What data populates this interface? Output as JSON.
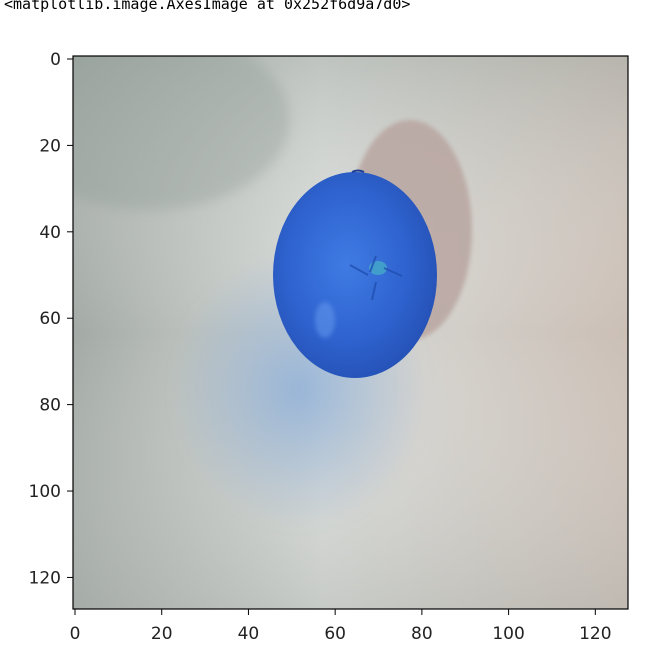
{
  "output_text": "<matplotlib.image.AxesImage at 0x252f6d9a7d0>",
  "image": {
    "width": 128,
    "height": 128,
    "subject": "blue-tinted tangerine photo (BGR channel order) on white surface",
    "colors": {
      "background_left": "#9fa8a3",
      "background_center": "#d9dcd8",
      "background_right": "#c9bdb3",
      "fruit_dark": "#2d5cc4",
      "fruit_light": "#3d78e0",
      "shadow": "#b8a7a0",
      "blue_shadow": "#7fa8d9"
    }
  },
  "axes": {
    "x_ticks": [
      0,
      20,
      40,
      60,
      80,
      100,
      120
    ],
    "y_ticks": [
      0,
      20,
      40,
      60,
      80,
      100,
      120
    ],
    "x_tick_labels": [
      "0",
      "20",
      "40",
      "60",
      "80",
      "100",
      "120"
    ],
    "y_tick_labels": [
      "0",
      "20",
      "40",
      "60",
      "80",
      "100",
      "120"
    ]
  }
}
